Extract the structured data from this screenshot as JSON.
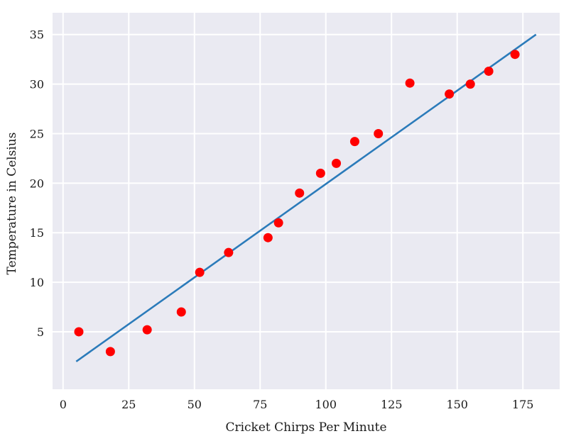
{
  "chart_data": {
    "type": "scatter",
    "title": "",
    "xlabel": "Cricket Chirps Per Minute",
    "ylabel": "Temperature in Celsius",
    "xlim": [
      -4,
      189
    ],
    "ylim": [
      -0.8,
      37.2
    ],
    "xticks": [
      0,
      25,
      50,
      75,
      100,
      125,
      150,
      175
    ],
    "yticks": [
      5,
      10,
      15,
      20,
      25,
      30,
      35
    ],
    "grid": true,
    "background": "#eaeaf2",
    "grid_color": "#ffffff",
    "points": {
      "color": "#ff0000",
      "x": [
        6,
        18,
        32,
        45,
        52,
        63,
        78,
        82,
        90,
        98,
        104,
        111,
        120,
        132,
        147,
        155,
        162,
        172
      ],
      "y": [
        5,
        3,
        5.2,
        7,
        11,
        13,
        14.5,
        16,
        19,
        21,
        22,
        24.2,
        25,
        30.1,
        29,
        30,
        31.3,
        33
      ]
    },
    "fit_line": {
      "color": "#2b7bba",
      "x": [
        5,
        180
      ],
      "y": [
        2,
        35
      ]
    }
  }
}
